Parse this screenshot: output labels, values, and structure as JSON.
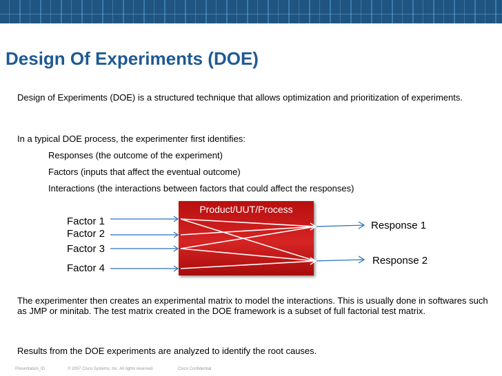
{
  "slide": {
    "title": "Design Of Experiments (DOE)",
    "intro": "Design of Experiments (DOE) is a structured technique that allows optimization and prioritization of experiments.",
    "identifies_intro": "In a typical DOE process, the experimenter first identifies:",
    "bullets": [
      "Responses (the outcome of the experiment)",
      "Factors (inputs that affect the eventual outcome)",
      "Interactions (the interactions between factors that could affect the responses)"
    ],
    "matrix_text": "The experimenter then creates an experimental matrix to model the interactions.  This is usually done in softwares such as JMP or minitab.   The test matrix created in the DOE framework is a subset of full factorial test matrix.",
    "results_text": "Results from the DOE experiments are analyzed to identify the root causes."
  },
  "diagram": {
    "box_label": "Product/UUT/Process",
    "factors": [
      "Factor 1",
      "Factor 2",
      "Factor 3",
      "Factor 4"
    ],
    "responses": [
      "Response 1",
      "Response 2"
    ],
    "line_color": "#2a6fb8"
  },
  "footer": {
    "presentation_id": "Presentation_ID",
    "copyright": "© 2007 Cisco Systems, Inc. All rights reserved.",
    "confidential": "Cisco Confidential"
  }
}
